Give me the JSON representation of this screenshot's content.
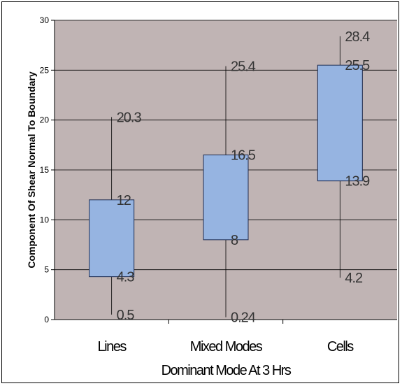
{
  "chart_data": {
    "type": "box",
    "title": "",
    "xlabel": "Dominant Mode At 3 Hrs",
    "ylabel": "Component Of Shear Normal To Boundary",
    "ylim": [
      0,
      30
    ],
    "yticks": [
      0,
      5,
      10,
      15,
      20,
      25,
      30
    ],
    "grid": true,
    "categories": [
      "Lines",
      "Mixed Modes",
      "Cells"
    ],
    "boxes": [
      {
        "category": "Lines",
        "min": 0.5,
        "q1": 4.3,
        "q3": 12,
        "max": 20.3,
        "labels": {
          "min": "0.5",
          "q1": "4.3",
          "q3": "12",
          "max": "20.3"
        }
      },
      {
        "category": "Mixed Modes",
        "min": 0.24,
        "q1": 8,
        "q3": 16.5,
        "max": 25.4,
        "labels": {
          "min": "0.24",
          "q1": "8",
          "q3": "16.5",
          "max": "25.4"
        }
      },
      {
        "category": "Cells",
        "min": 4.2,
        "q1": 13.9,
        "q3": 25.5,
        "max": 28.4,
        "labels": {
          "min": "4.2",
          "q1": "13.9",
          "q3": "25.5",
          "max": "28.4"
        }
      }
    ],
    "colors": {
      "plot_bg": "#c0b4b4",
      "box_fill": "#96b4e1",
      "box_stroke": "#1f2d52",
      "grid": "#000000"
    }
  }
}
